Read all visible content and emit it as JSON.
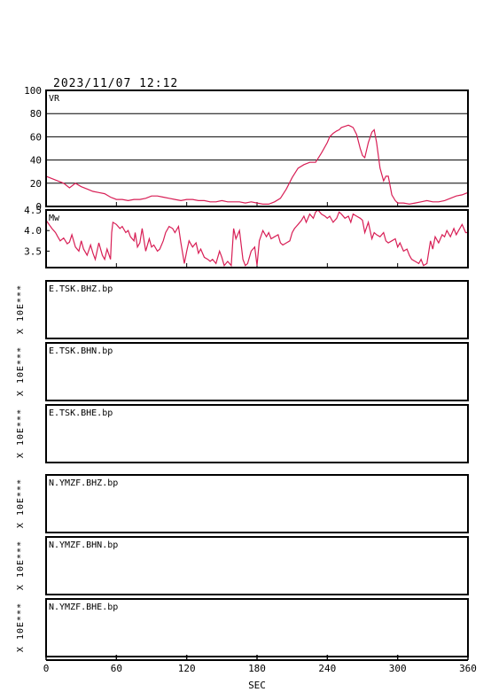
{
  "header": {
    "datetime": "2023/11/07 12:12"
  },
  "chart_data": [
    {
      "type": "line",
      "panel_label": "VR",
      "ylim": [
        0,
        100
      ],
      "y_ticks": [
        "100",
        "80",
        "60",
        "40",
        "20",
        "0"
      ],
      "grid": true,
      "line_color": "#d81f56",
      "x": [
        0,
        5,
        10,
        15,
        20,
        25,
        30,
        35,
        40,
        45,
        50,
        55,
        60,
        65,
        70,
        75,
        80,
        85,
        90,
        95,
        100,
        105,
        110,
        115,
        120,
        125,
        130,
        135,
        140,
        145,
        150,
        155,
        160,
        165,
        170,
        175,
        180,
        185,
        190,
        195,
        200,
        205,
        210,
        215,
        220,
        225,
        230,
        235,
        240,
        242,
        245,
        248,
        250,
        252,
        255,
        258,
        260,
        262,
        265,
        268,
        270,
        272,
        275,
        278,
        280,
        282,
        285,
        288,
        290,
        292,
        295,
        298,
        300,
        305,
        310,
        315,
        320,
        325,
        330,
        335,
        340,
        345,
        350,
        355,
        360
      ],
      "y": [
        26,
        24,
        22,
        20,
        16,
        20,
        17,
        15,
        13,
        12,
        11,
        8,
        6,
        6,
        5,
        6,
        6,
        7,
        9,
        9,
        8,
        7,
        6,
        5,
        6,
        6,
        5,
        5,
        4,
        4,
        5,
        4,
        4,
        4,
        3,
        4,
        3,
        2,
        2,
        4,
        7,
        15,
        25,
        33,
        36,
        38,
        38,
        46,
        55,
        60,
        63,
        65,
        66,
        68,
        69,
        70,
        69,
        68,
        62,
        50,
        44,
        42,
        55,
        64,
        66,
        55,
        33,
        22,
        26,
        26,
        10,
        5,
        3,
        3,
        2,
        3,
        4,
        5,
        4,
        4,
        5,
        7,
        9,
        10,
        12
      ]
    },
    {
      "type": "line",
      "panel_label": "Mw",
      "ylim": [
        3.1,
        4.5
      ],
      "y_ticks": [
        "4.5",
        "4.0",
        "3.5"
      ],
      "line_color": "#d81f56",
      "x": [
        0,
        5,
        8,
        10,
        12,
        15,
        18,
        20,
        22,
        25,
        28,
        30,
        32,
        35,
        38,
        40,
        42,
        45,
        48,
        50,
        52,
        55,
        56,
        57,
        60,
        63,
        65,
        68,
        70,
        72,
        75,
        76,
        78,
        80,
        82,
        85,
        88,
        90,
        92,
        95,
        97,
        100,
        102,
        105,
        108,
        110,
        113,
        115,
        118,
        120,
        122,
        125,
        128,
        130,
        132,
        135,
        138,
        140,
        142,
        145,
        148,
        150,
        152,
        155,
        158,
        160,
        162,
        165,
        168,
        170,
        172,
        175,
        178,
        180,
        182,
        185,
        188,
        190,
        192,
        195,
        198,
        200,
        202,
        205,
        208,
        210,
        212,
        215,
        218,
        220,
        222,
        225,
        228,
        230,
        232,
        235,
        238,
        240,
        242,
        245,
        248,
        250,
        252,
        255,
        258,
        260,
        262,
        265,
        268,
        270,
        272,
        275,
        278,
        280,
        282,
        285,
        288,
        290,
        292,
        295,
        298,
        300,
        302,
        305,
        308,
        310,
        312,
        315,
        318,
        320,
        322,
        325,
        328,
        330,
        332,
        335,
        338,
        340,
        342,
        345,
        348,
        350,
        352,
        355,
        358,
        360
      ],
      "y": [
        4.25,
        4.05,
        3.95,
        3.85,
        3.75,
        3.82,
        3.68,
        3.72,
        3.9,
        3.6,
        3.5,
        3.75,
        3.55,
        3.4,
        3.65,
        3.45,
        3.3,
        3.7,
        3.4,
        3.3,
        3.55,
        3.3,
        3.95,
        4.2,
        4.15,
        4.05,
        4.1,
        3.95,
        4.0,
        3.85,
        3.75,
        3.95,
        3.6,
        3.7,
        4.05,
        3.5,
        3.8,
        3.6,
        3.65,
        3.5,
        3.55,
        3.75,
        3.95,
        4.1,
        4.05,
        3.95,
        4.1,
        3.7,
        3.2,
        3.5,
        3.75,
        3.6,
        3.7,
        3.45,
        3.55,
        3.35,
        3.3,
        3.25,
        3.3,
        3.2,
        3.5,
        3.35,
        3.15,
        3.25,
        3.15,
        4.05,
        3.8,
        4.0,
        3.3,
        3.15,
        3.2,
        3.5,
        3.6,
        3.15,
        3.75,
        4.0,
        3.85,
        3.95,
        3.8,
        3.85,
        3.9,
        3.7,
        3.65,
        3.7,
        3.75,
        3.95,
        4.05,
        4.15,
        4.25,
        4.35,
        4.2,
        4.4,
        4.3,
        4.45,
        4.5,
        4.4,
        4.35,
        4.3,
        4.35,
        4.2,
        4.3,
        4.45,
        4.4,
        4.3,
        4.35,
        4.2,
        4.4,
        4.35,
        4.3,
        4.25,
        3.95,
        4.2,
        3.8,
        3.95,
        3.9,
        3.85,
        3.95,
        3.75,
        3.7,
        3.75,
        3.8,
        3.6,
        3.7,
        3.5,
        3.55,
        3.4,
        3.3,
        3.25,
        3.2,
        3.3,
        3.15,
        3.2,
        3.75,
        3.55,
        3.85,
        3.7,
        3.9,
        3.85,
        4.0,
        3.85,
        4.05,
        3.9,
        4.0,
        4.15,
        3.95,
        3.95
      ]
    },
    {
      "type": "line",
      "traces": [
        {
          "label": "E.TSK.BHZ.bp",
          "ylabel": "X 10E***"
        },
        {
          "label": "E.TSK.BHN.bp",
          "ylabel": "X 10E***"
        },
        {
          "label": "E.TSK.BHE.bp",
          "ylabel": "X 10E***"
        },
        {
          "label": "N.YMZF.BHZ.bp",
          "ylabel": "X 10E***"
        },
        {
          "label": "N.YMZF.BHN.bp",
          "ylabel": "X 10E***"
        },
        {
          "label": "N.YMZF.BHE.bp",
          "ylabel": "X 10E***"
        }
      ],
      "xlim": [
        0,
        360
      ],
      "x_ticks": [
        "0",
        "60",
        "120",
        "180",
        "240",
        "300",
        "360"
      ],
      "xlabel": "SEC"
    }
  ]
}
